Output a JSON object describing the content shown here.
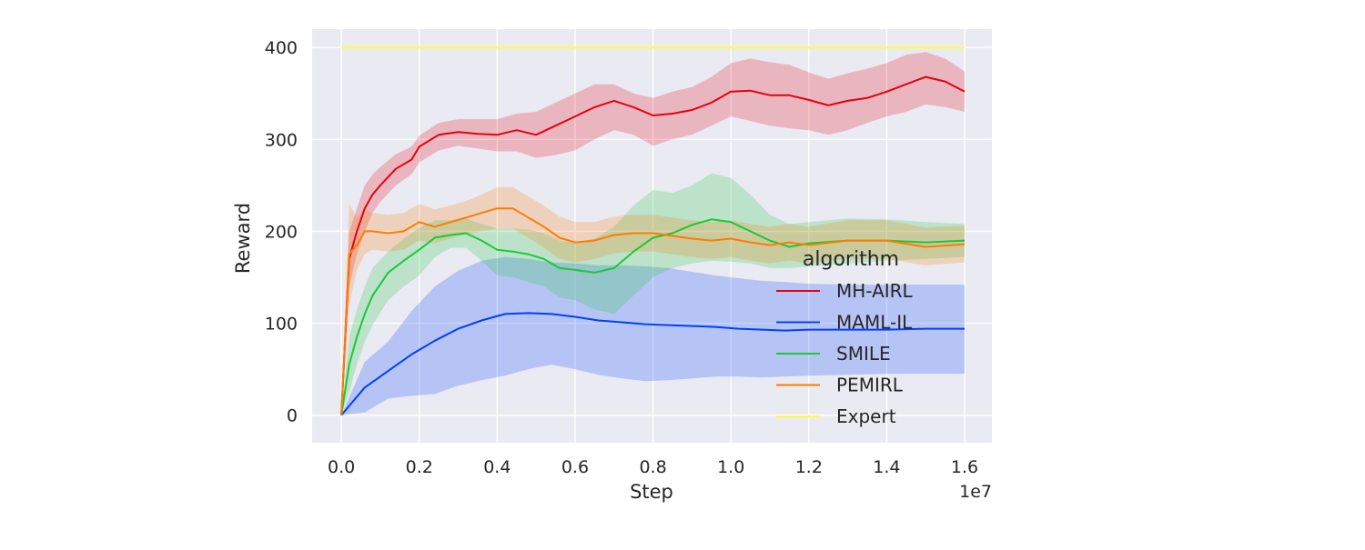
{
  "chart_data": {
    "type": "line",
    "xlabel": "Step",
    "ylabel": "Reward",
    "x_offset_label": "1e7",
    "xlim": [
      -0.075,
      1.67
    ],
    "ylim": [
      -30,
      420
    ],
    "x_ticks": [
      {
        "value": 0.0,
        "label": "0.0"
      },
      {
        "value": 0.2,
        "label": "0.2"
      },
      {
        "value": 0.4,
        "label": "0.4"
      },
      {
        "value": 0.6,
        "label": "0.6"
      },
      {
        "value": 0.8,
        "label": "0.8"
      },
      {
        "value": 1.0,
        "label": "1.0"
      },
      {
        "value": 1.2,
        "label": "1.2"
      },
      {
        "value": 1.4,
        "label": "1.4"
      },
      {
        "value": 1.6,
        "label": "1.6"
      }
    ],
    "y_ticks": [
      {
        "value": 0,
        "label": "0"
      },
      {
        "value": 100,
        "label": "100"
      },
      {
        "value": 200,
        "label": "200"
      },
      {
        "value": 300,
        "label": "300"
      },
      {
        "value": 400,
        "label": "400"
      }
    ],
    "grid": true,
    "legend": {
      "title": "algorithm",
      "placement": "lower-right"
    },
    "series": [
      {
        "name": "MH-AIRL",
        "color": "#e8000b",
        "x": [
          0,
          0.02,
          0.04,
          0.06,
          0.08,
          0.1,
          0.14,
          0.18,
          0.2,
          0.25,
          0.3,
          0.35,
          0.4,
          0.45,
          0.5,
          0.55,
          0.6,
          0.65,
          0.7,
          0.75,
          0.8,
          0.85,
          0.9,
          0.95,
          1.0,
          1.05,
          1.1,
          1.15,
          1.2,
          1.25,
          1.3,
          1.35,
          1.4,
          1.45,
          1.5,
          1.55,
          1.6
        ],
        "y": [
          0,
          170,
          200,
          225,
          240,
          250,
          268,
          278,
          292,
          305,
          308,
          306,
          305,
          310,
          305,
          315,
          325,
          335,
          342,
          335,
          326,
          328,
          332,
          340,
          352,
          353,
          348,
          348,
          343,
          337,
          342,
          345,
          352,
          360,
          368,
          363,
          352
        ],
        "lower": [
          0,
          140,
          175,
          200,
          220,
          232,
          250,
          262,
          275,
          288,
          293,
          290,
          287,
          287,
          280,
          283,
          288,
          300,
          310,
          305,
          293,
          300,
          305,
          315,
          325,
          320,
          315,
          312,
          310,
          305,
          310,
          318,
          325,
          330,
          338,
          335,
          330
        ],
        "upper": [
          0,
          200,
          225,
          250,
          262,
          270,
          284,
          292,
          304,
          318,
          322,
          322,
          322,
          328,
          330,
          340,
          350,
          360,
          360,
          350,
          345,
          352,
          357,
          368,
          383,
          388,
          384,
          381,
          373,
          366,
          372,
          377,
          383,
          392,
          395,
          388,
          374
        ]
      },
      {
        "name": "MAML-IL",
        "color": "#023eff",
        "x": [
          0,
          0.06,
          0.12,
          0.18,
          0.24,
          0.3,
          0.36,
          0.42,
          0.48,
          0.54,
          0.6,
          0.66,
          0.72,
          0.78,
          0.84,
          0.9,
          0.96,
          1.02,
          1.08,
          1.14,
          1.2,
          1.3,
          1.4,
          1.5,
          1.6
        ],
        "y": [
          0,
          30,
          48,
          66,
          81,
          94,
          103,
          110,
          111,
          110,
          107,
          103,
          101,
          99,
          98,
          97,
          96,
          94,
          93,
          92,
          93,
          93,
          93,
          94,
          94
        ],
        "lower": [
          0,
          3,
          18,
          21,
          23,
          32,
          38,
          43,
          50,
          55,
          50,
          44,
          40,
          37,
          38,
          40,
          42,
          42,
          41,
          42,
          43,
          44,
          45,
          45,
          45
        ],
        "upper": [
          0,
          58,
          80,
          113,
          140,
          157,
          168,
          172,
          170,
          166,
          165,
          163,
          163,
          162,
          160,
          156,
          152,
          149,
          146,
          145,
          143,
          142,
          142,
          142,
          142
        ]
      },
      {
        "name": "SMILE",
        "color": "#1ac938",
        "x": [
          0,
          0.02,
          0.04,
          0.06,
          0.08,
          0.12,
          0.16,
          0.2,
          0.24,
          0.28,
          0.32,
          0.36,
          0.4,
          0.44,
          0.48,
          0.52,
          0.56,
          0.6,
          0.65,
          0.7,
          0.75,
          0.8,
          0.85,
          0.9,
          0.95,
          1.0,
          1.05,
          1.1,
          1.15,
          1.2,
          1.3,
          1.4,
          1.5,
          1.6
        ],
        "y": [
          0,
          55,
          85,
          110,
          130,
          155,
          168,
          180,
          193,
          196,
          198,
          190,
          180,
          178,
          175,
          170,
          160,
          158,
          155,
          160,
          178,
          193,
          198,
          207,
          213,
          210,
          200,
          190,
          183,
          187,
          190,
          190,
          188,
          190
        ],
        "lower": [
          0,
          25,
          55,
          80,
          98,
          125,
          140,
          152,
          172,
          182,
          182,
          168,
          152,
          150,
          145,
          140,
          128,
          125,
          115,
          110,
          130,
          150,
          160,
          165,
          168,
          167,
          165,
          160,
          160,
          162,
          165,
          168,
          170,
          172
        ],
        "upper": [
          0,
          85,
          115,
          140,
          160,
          178,
          192,
          204,
          212,
          212,
          214,
          208,
          203,
          203,
          202,
          198,
          190,
          188,
          192,
          205,
          228,
          245,
          242,
          250,
          263,
          258,
          240,
          218,
          208,
          210,
          214,
          213,
          210,
          208
        ]
      },
      {
        "name": "PEMIRL",
        "color": "#ff7c00",
        "x": [
          0,
          0.02,
          0.04,
          0.06,
          0.08,
          0.12,
          0.16,
          0.2,
          0.24,
          0.28,
          0.32,
          0.36,
          0.4,
          0.44,
          0.48,
          0.52,
          0.56,
          0.6,
          0.65,
          0.7,
          0.75,
          0.8,
          0.85,
          0.9,
          0.95,
          1.0,
          1.05,
          1.1,
          1.15,
          1.2,
          1.3,
          1.4,
          1.5,
          1.6
        ],
        "y": [
          0,
          175,
          185,
          200,
          200,
          198,
          200,
          210,
          205,
          210,
          215,
          220,
          225,
          225,
          215,
          205,
          193,
          188,
          190,
          196,
          198,
          198,
          195,
          192,
          190,
          192,
          188,
          185,
          188,
          185,
          190,
          190,
          183,
          186
        ],
        "lower": [
          0,
          120,
          158,
          175,
          180,
          178,
          180,
          190,
          187,
          192,
          197,
          200,
          203,
          203,
          193,
          182,
          170,
          166,
          170,
          176,
          178,
          178,
          175,
          172,
          170,
          172,
          168,
          165,
          168,
          165,
          170,
          170,
          163,
          166
        ],
        "upper": [
          0,
          230,
          215,
          225,
          220,
          218,
          220,
          230,
          224,
          228,
          233,
          240,
          248,
          248,
          238,
          228,
          216,
          210,
          210,
          216,
          218,
          218,
          215,
          212,
          210,
          212,
          208,
          205,
          208,
          205,
          212,
          212,
          204,
          206
        ]
      },
      {
        "name": "Expert",
        "color": "#fffe38",
        "x": [
          0,
          1.6
        ],
        "y": [
          400,
          400
        ]
      }
    ]
  }
}
